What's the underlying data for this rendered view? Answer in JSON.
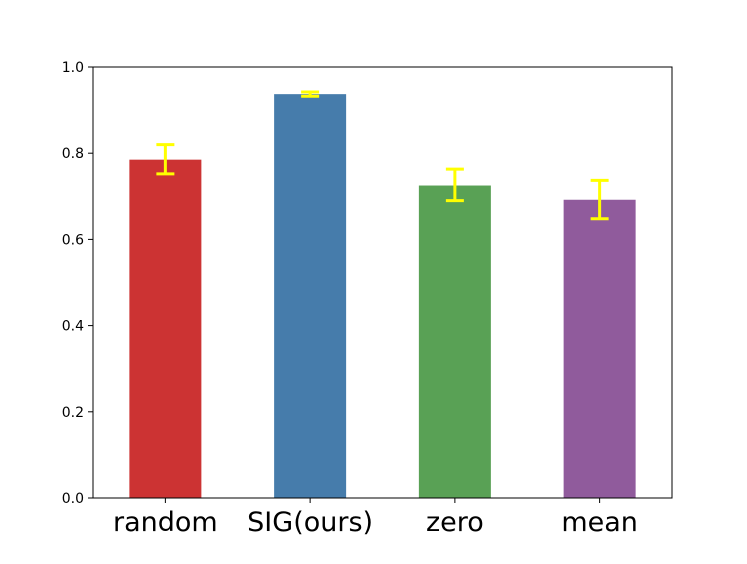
{
  "chart_data": {
    "type": "bar",
    "title": "",
    "xlabel": "",
    "ylabel": "",
    "categories": [
      "random",
      "SIG(ours)",
      "zero",
      "mean"
    ],
    "values": [
      0.785,
      0.937,
      0.725,
      0.692
    ],
    "error_low": [
      0.752,
      0.932,
      0.69,
      0.648
    ],
    "error_high": [
      0.82,
      0.942,
      0.763,
      0.737
    ],
    "bar_colors": [
      "#cc3333",
      "#467cab",
      "#59a155",
      "#905b9c"
    ],
    "error_color": "#ffff00",
    "ylim": [
      0,
      1.0
    ],
    "yticks": [
      "0.0",
      "0.2",
      "0.4",
      "0.6",
      "0.8",
      "1.0"
    ],
    "grid": false,
    "legend": "none"
  }
}
